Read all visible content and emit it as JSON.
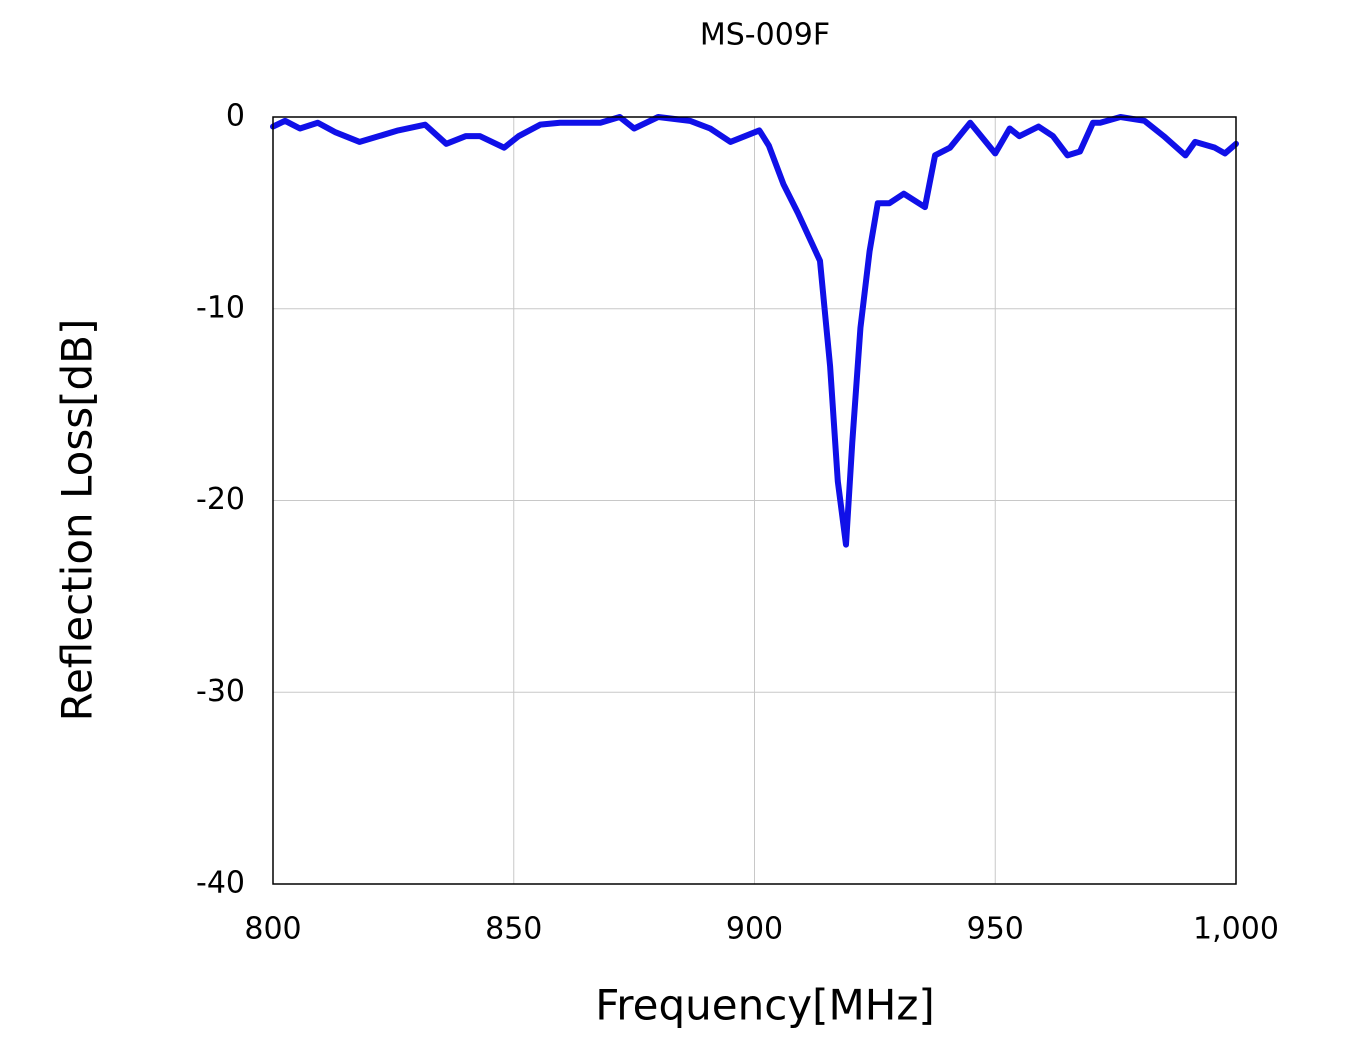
{
  "chart_data": {
    "type": "line",
    "title": "MS-009F",
    "x_label": "Frequency[MHz]",
    "y_label": "Reflection Loss[dB]",
    "xlim": [
      800,
      1000
    ],
    "ylim": [
      -40,
      0
    ],
    "xticks": [
      800,
      850,
      900,
      950,
      {
        "value": 1000,
        "label": "1,000"
      }
    ],
    "yticks": [
      -40,
      -30,
      -20,
      -10,
      0
    ],
    "grid": true,
    "series": [
      {
        "color": "#1010e8",
        "x": [
          800,
          802.5,
          805.6,
          809.3,
          813,
          818,
          822,
          826,
          831.6,
          836,
          840,
          843,
          848,
          851,
          855.5,
          859.6,
          868,
          872,
          875,
          880,
          886.6,
          890.8,
          895,
          901,
          903,
          906,
          909,
          913.6,
          915.7,
          917.3,
          919,
          920.3,
          922,
          923.9,
          925.6,
          928,
          931,
          935.4,
          937.5,
          940.6,
          944.8,
          950,
          953,
          955,
          959,
          962,
          965,
          967.6,
          970.3,
          971.8,
          976,
          981,
          985,
          989.5,
          991.5,
          995.6,
          997.7,
          1000
        ],
        "values": [
          -0.5,
          -0.2,
          -0.6,
          -0.3,
          -0.8,
          -1.3,
          -1.0,
          -0.7,
          -0.4,
          -1.4,
          -1.0,
          -1.0,
          -1.6,
          -1.0,
          -0.4,
          -0.3,
          -0.3,
          0,
          -0.6,
          0,
          -0.2,
          -0.6,
          -1.3,
          -0.7,
          -1.5,
          -3.5,
          -5,
          -7.5,
          -13,
          -19,
          -22.3,
          -17,
          -11,
          -7,
          -4.5,
          -4.5,
          -4,
          -4.7,
          -2,
          -1.6,
          -0.3,
          -1.9,
          -0.6,
          -1.0,
          -0.5,
          -1.0,
          -2.0,
          -1.8,
          -0.3,
          -0.3,
          0,
          -0.2,
          -1.0,
          -2.0,
          -1.3,
          -1.6,
          -1.9,
          -1.4
        ]
      }
    ]
  }
}
